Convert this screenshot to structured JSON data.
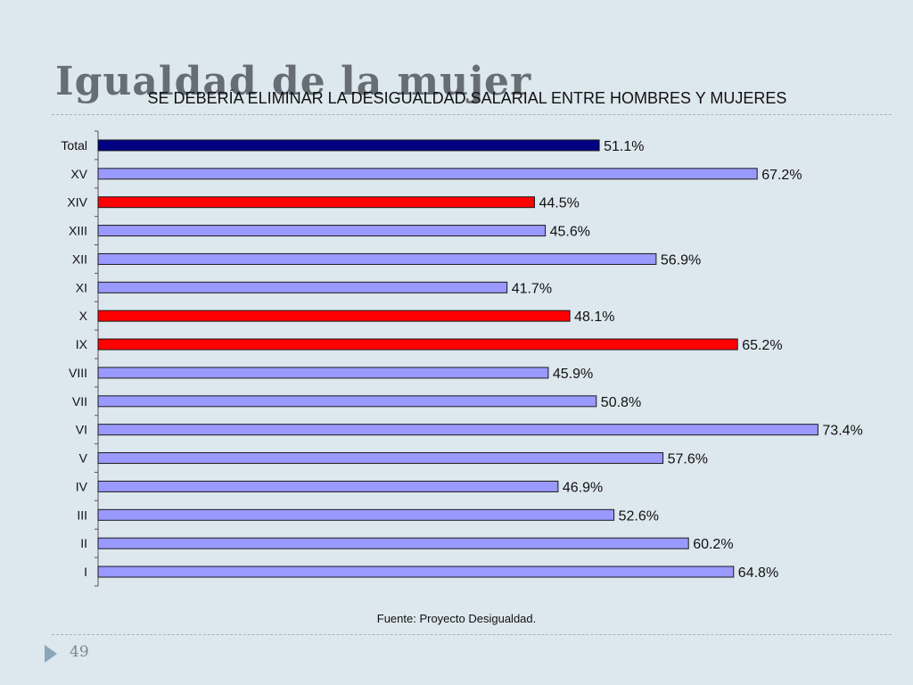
{
  "slide": {
    "title": "Igualdad de la mujer",
    "page_number": "49"
  },
  "chart_data": {
    "type": "bar",
    "orientation": "horizontal",
    "title": "SE DEBERÍA ELIMINAR LA DESIGUALDAD SALARIAL ENTRE HOMBRES Y MUJERES",
    "source": "Fuente: Proyecto Desigualdad.",
    "categories": [
      "Total",
      "XV",
      "XIV",
      "XIII",
      "XII",
      "XI",
      "X",
      "IX",
      "VIII",
      "VII",
      "VI",
      "V",
      "IV",
      "III",
      "II",
      "I"
    ],
    "values": [
      51.1,
      67.2,
      44.5,
      45.6,
      56.9,
      41.7,
      48.1,
      65.2,
      45.9,
      50.8,
      73.4,
      57.6,
      46.9,
      52.6,
      60.2,
      64.8
    ],
    "value_labels": [
      "51.1%",
      "67.2%",
      "44.5%",
      "45.6%",
      "56.9%",
      "41.7%",
      "48.1%",
      "65.2%",
      "45.9%",
      "50.8%",
      "73.4%",
      "57.6%",
      "46.9%",
      "52.6%",
      "60.2%",
      "64.8%"
    ],
    "bar_colors": [
      "#000080",
      "#9999ff",
      "#ff0000",
      "#9999ff",
      "#9999ff",
      "#9999ff",
      "#ff0000",
      "#ff0000",
      "#9999ff",
      "#9999ff",
      "#9999ff",
      "#9999ff",
      "#9999ff",
      "#9999ff",
      "#9999ff",
      "#9999ff"
    ],
    "xlim": [
      0,
      80
    ],
    "grid": false,
    "legend": "none"
  }
}
